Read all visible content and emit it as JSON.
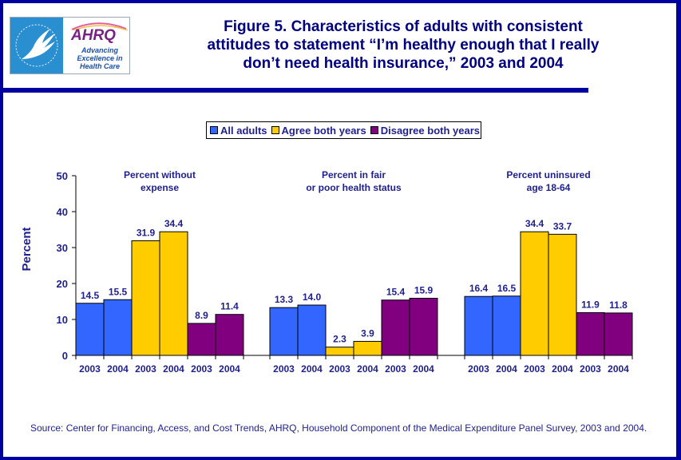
{
  "header": {
    "logo_hhs_label": "Department of Health & Human Services USA",
    "logo_ahrq_word": "AHRQ",
    "logo_ahrq_tagline": "Advancing Excellence in Health Care"
  },
  "colors": {
    "frame": "#0000a0",
    "text": "#1f1f8f",
    "all_adults": "#3366ff",
    "agree": "#ffcc00",
    "disagree": "#800080"
  },
  "chart_data": {
    "type": "bar",
    "title": "Figure 5. Characteristics of adults with consistent attitudes to statement “I’m healthy enough that I really don’t need health insurance,” 2003 and 2004",
    "title_lines": [
      "Figure 5. Characteristics of adults with consistent",
      "attitudes to statement “I’m healthy enough that I really",
      "don’t need health insurance,” 2003 and 2004"
    ],
    "xlabel": "",
    "ylabel": "Percent",
    "ylim": [
      0,
      50
    ],
    "yticks": [
      0,
      10,
      20,
      30,
      40,
      50
    ],
    "grid": false,
    "legend_position": "top-center",
    "legend": [
      "All adults",
      "Agree both years",
      "Disagree both years"
    ],
    "groups": [
      {
        "label_lines": [
          "Percent without",
          "expense"
        ],
        "bars": [
          {
            "series": "All adults",
            "year": "2003",
            "value": 14.5
          },
          {
            "series": "All adults",
            "year": "2004",
            "value": 15.5
          },
          {
            "series": "Agree both years",
            "year": "2003",
            "value": 31.9
          },
          {
            "series": "Agree both years",
            "year": "2004",
            "value": 34.4
          },
          {
            "series": "Disagree both years",
            "year": "2003",
            "value": 8.9
          },
          {
            "series": "Disagree both years",
            "year": "2004",
            "value": 11.4
          }
        ]
      },
      {
        "label_lines": [
          "Percent in fair",
          "or poor health status"
        ],
        "bars": [
          {
            "series": "All adults",
            "year": "2003",
            "value": 13.3
          },
          {
            "series": "All adults",
            "year": "2004",
            "value": 14.0
          },
          {
            "series": "Agree both years",
            "year": "2003",
            "value": 2.3
          },
          {
            "series": "Agree both years",
            "year": "2004",
            "value": 3.9
          },
          {
            "series": "Disagree both years",
            "year": "2003",
            "value": 15.4
          },
          {
            "series": "Disagree both years",
            "year": "2004",
            "value": 15.9
          }
        ]
      },
      {
        "label_lines": [
          "Percent uninsured",
          "age 18-64"
        ],
        "bars": [
          {
            "series": "All adults",
            "year": "2003",
            "value": 16.4
          },
          {
            "series": "All adults",
            "year": "2004",
            "value": 16.5
          },
          {
            "series": "Agree both years",
            "year": "2003",
            "value": 34.4
          },
          {
            "series": "Agree both years",
            "year": "2004",
            "value": 33.7
          },
          {
            "series": "Disagree both years",
            "year": "2003",
            "value": 11.9
          },
          {
            "series": "Disagree both years",
            "year": "2004",
            "value": 11.8
          }
        ]
      }
    ]
  },
  "legend": {
    "items": [
      {
        "label": "All adults",
        "color": "#3366ff"
      },
      {
        "label": "Agree both years",
        "color": "#ffcc00"
      },
      {
        "label": "Disagree both years",
        "color": "#800080"
      }
    ]
  },
  "source": "Source: Center for Financing, Access, and Cost Trends, AHRQ, Household Component of the Medical Expenditure Panel Survey, 2003 and 2004."
}
